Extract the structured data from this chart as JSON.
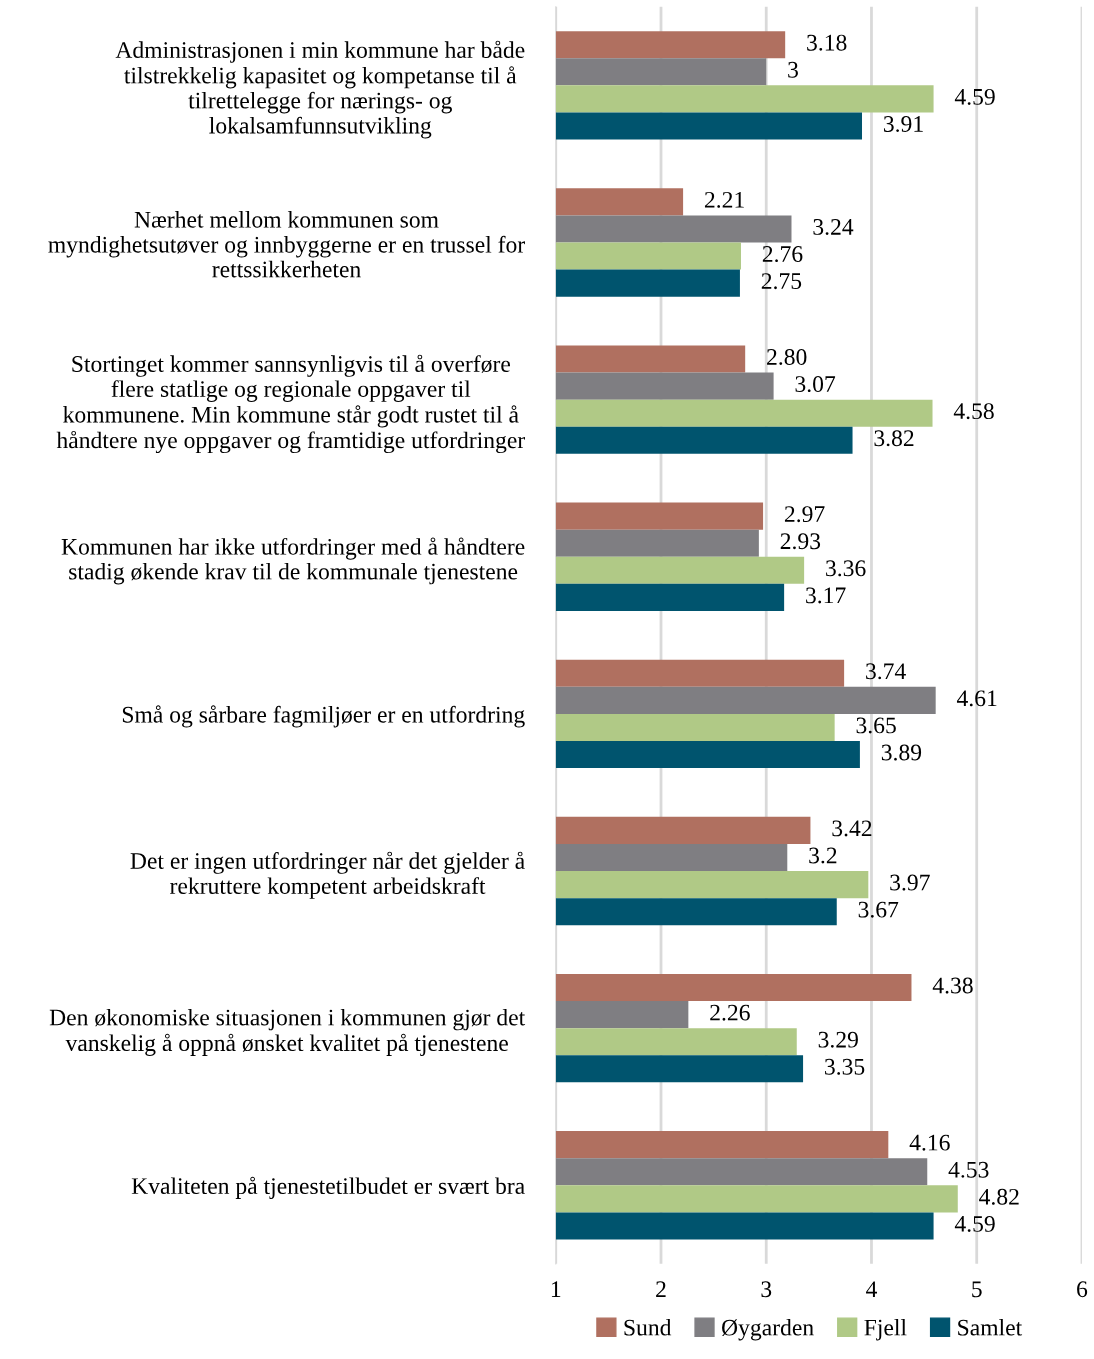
{
  "chart_data": {
    "type": "bar",
    "orientation": "horizontal",
    "categories": [
      "Administrasjonen i min kommune har både\ntilstrekkelig kapasitet og kompetanse til å\ntilrettelegge for nærings- og\nlokalsamfunnsutvikling",
      "Nærhet mellom kommunen som\nmyndighetsutøver og innbyggerne er en trussel for\nrettssikkerheten",
      "Stortinget kommer sannsynligvis til å overføre\nflere statlige og regionale oppgaver til\nkommunene. Min kommune står godt rustet til å\nhåndtere nye oppgaver og framtidige utfordringer",
      "Kommunen har ikke utfordringer med å håndtere\nstadig økende krav til de kommunale tjenestene",
      "Små og sårbare fagmiljøer er en utfordring",
      "Det er ingen utfordringer når det gjelder å\nrekruttere kompetent arbeidskraft",
      "Den økonomiske situasjonen i kommunen gjør det\nvanskelig å oppnå ønsket kvalitet på tjenestene",
      "Kvaliteten på tjenestetilbudet er svært bra"
    ],
    "series": [
      {
        "name": "Sund",
        "color": "#b07060",
        "values": [
          3.18,
          2.21,
          2.8,
          2.97,
          3.74,
          3.42,
          4.38,
          4.16
        ],
        "value_labels": [
          "3.18",
          "2.21",
          "2.80",
          "2.97",
          "3.74",
          "3.42",
          "4.38",
          "4.16"
        ]
      },
      {
        "name": "Øygarden",
        "color": "#7f7e82",
        "values": [
          3,
          3.24,
          3.07,
          2.93,
          4.61,
          3.2,
          2.26,
          4.53
        ],
        "value_labels": [
          "3",
          "3.24",
          "3.07",
          "2.93",
          "4.61",
          "3.2",
          "2.26",
          "4.53"
        ]
      },
      {
        "name": "Fjell",
        "color": "#b0c986",
        "values": [
          4.59,
          2.76,
          4.58,
          3.36,
          3.65,
          3.97,
          3.29,
          4.82
        ],
        "value_labels": [
          "4.59",
          "2.76",
          "4.58",
          "3.36",
          "3.65",
          "3.97",
          "3.29",
          "4.82"
        ]
      },
      {
        "name": "Samlet",
        "color": "#00546e",
        "values": [
          3.91,
          2.75,
          3.82,
          3.17,
          3.89,
          3.67,
          3.35,
          4.59
        ],
        "value_labels": [
          "3.91",
          "2.75",
          "3.82",
          "3.17",
          "3.89",
          "3.67",
          "3.35",
          "4.59"
        ]
      }
    ],
    "xlim": [
      1,
      6
    ],
    "xticks": [
      1,
      2,
      3,
      4,
      5,
      6
    ],
    "grid": "x",
    "legend": "bottom"
  }
}
